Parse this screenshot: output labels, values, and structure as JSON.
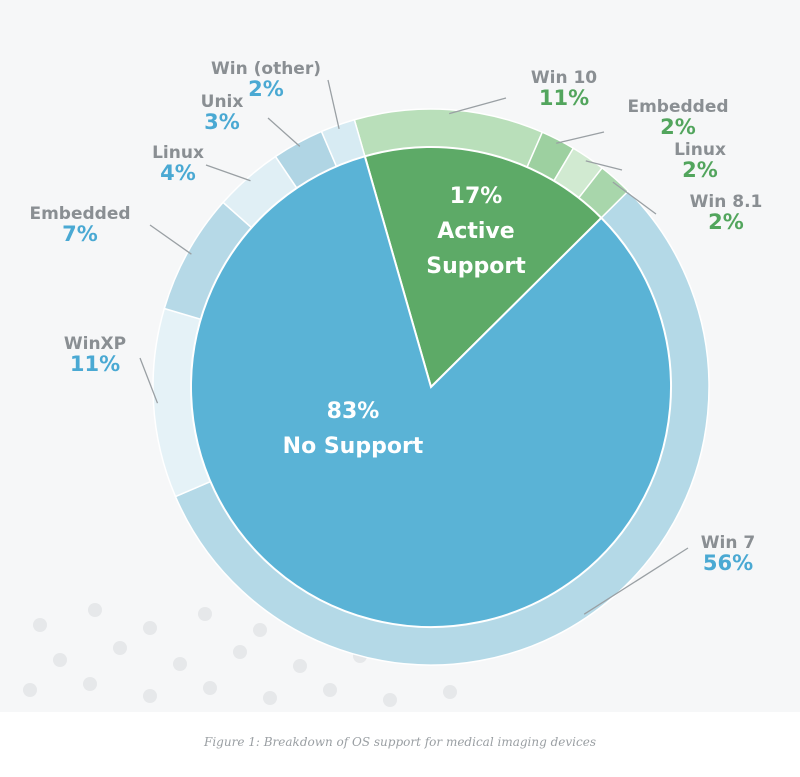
{
  "chart_data": {
    "type": "pie",
    "title": "",
    "caption": "Figure 1: Breakdown of OS support for medical imaging devices",
    "inner": [
      {
        "pct_label": "17%",
        "name_lines": [
          "Active",
          "Support"
        ],
        "value": 17,
        "color": "#5daa67"
      },
      {
        "pct_label": "83%",
        "name_lines": [
          "No Support"
        ],
        "value": 83,
        "color": "#5ab3d6"
      }
    ],
    "outer": [
      {
        "label": "Win 10",
        "value_label": "11%",
        "value": 11,
        "group": "active",
        "color": "#b9dfba"
      },
      {
        "label": "Embedded",
        "value_label": "2%",
        "value": 2,
        "group": "active",
        "color": "#9dd0a0"
      },
      {
        "label": "Linux",
        "value_label": "2%",
        "value": 2,
        "group": "active",
        "color": "#d1ead1"
      },
      {
        "label": "Win 8.1",
        "value_label": "2%",
        "value": 2,
        "group": "active",
        "color": "#a8d6ab"
      },
      {
        "label": "Win 7",
        "value_label": "56%",
        "value": 56,
        "group": "none",
        "color": "#b4d9e7"
      },
      {
        "label": "WinXP",
        "value_label": "11%",
        "value": 11,
        "group": "none",
        "color": "#e5f2f7"
      },
      {
        "label": "Embedded",
        "value_label": "7%",
        "value": 7,
        "group": "none",
        "color": "#b6d9e7"
      },
      {
        "label": "Linux",
        "value_label": "4%",
        "value": 4,
        "group": "none",
        "color": "#e0eff5"
      },
      {
        "label": "Unix",
        "value_label": "3%",
        "value": 3,
        "group": "none",
        "color": "#b0d5e4"
      },
      {
        "label": "Win (other)",
        "value_label": "2%",
        "value": 2,
        "group": "none",
        "color": "#d7ebf3"
      }
    ],
    "group_colors": {
      "active": "#52a55d",
      "none": "#4aa9d3"
    }
  }
}
